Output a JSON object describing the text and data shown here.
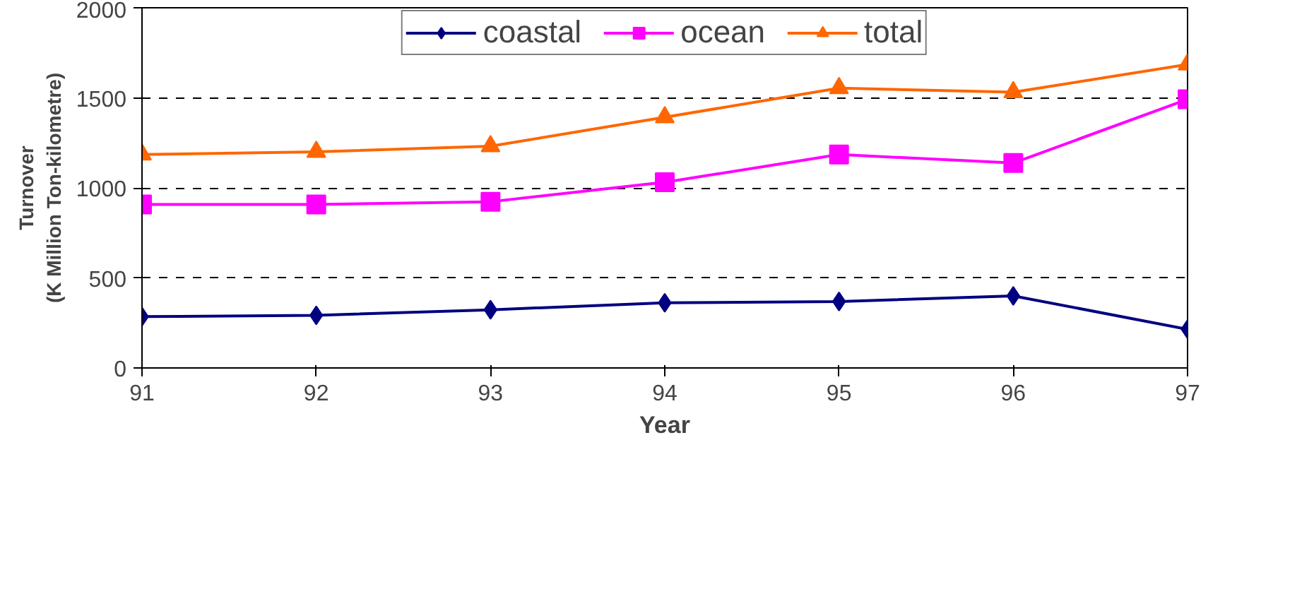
{
  "chart_data": {
    "type": "line",
    "xlabel": "Year",
    "ylabel": "Turnover\n(K Million Ton-kilometre)",
    "x": [
      91,
      92,
      93,
      94,
      95,
      96,
      97
    ],
    "xlim": [
      91,
      97
    ],
    "xticks": [
      91,
      92,
      93,
      94,
      95,
      96,
      97
    ],
    "ylim": [
      0,
      2000
    ],
    "yticks": [
      0,
      500,
      1000,
      1500,
      2000
    ],
    "grid": "y",
    "legend": "top",
    "series": [
      {
        "name": "coastal",
        "color": "#000080",
        "marker": "diamond",
        "values": [
          285,
          292,
          323,
          362,
          369,
          400,
          215
        ]
      },
      {
        "name": "ocean",
        "color": "#ff00ff",
        "marker": "square",
        "values": [
          908,
          908,
          923,
          1031,
          1185,
          1138,
          1492
        ]
      },
      {
        "name": "total",
        "color": "#ff6600",
        "marker": "triangle",
        "values": [
          1185,
          1200,
          1231,
          1392,
          1554,
          1531,
          1685
        ]
      }
    ]
  }
}
